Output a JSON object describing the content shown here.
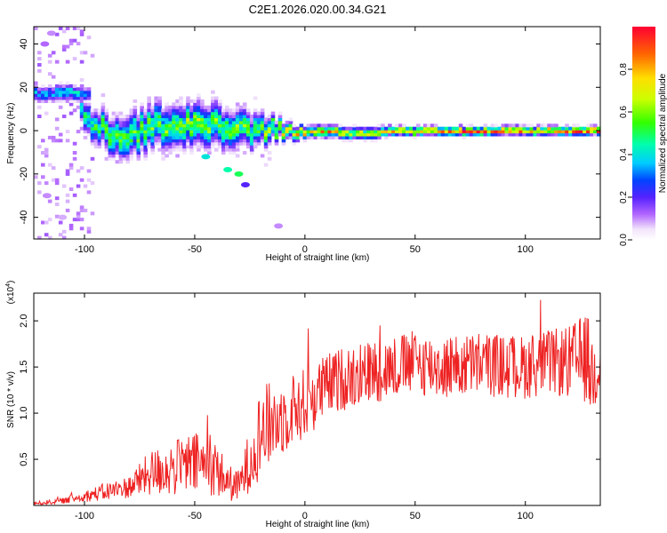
{
  "title": "C2E1.2026.020.00.34.G21",
  "chart_data": [
    {
      "type": "heatmap",
      "xlabel": "Height of straight line (km)",
      "ylabel": "Frequency (Hz)",
      "xlim": [
        -123,
        134
      ],
      "ylim": [
        -50,
        48
      ],
      "xticks": [
        -100,
        -50,
        0,
        50,
        100
      ],
      "yticks": [
        -40,
        -20,
        0,
        20,
        40
      ],
      "ridge": [
        {
          "x": -110,
          "y": 17,
          "amp": 0.35,
          "spread": 2.5
        },
        {
          "x": -103,
          "y": 15,
          "amp": 0.45,
          "spread": 2
        },
        {
          "x": -100,
          "y": 4,
          "amp": 0.5,
          "spread": 5
        },
        {
          "x": -90,
          "y": 0,
          "amp": 0.55,
          "spread": 6
        },
        {
          "x": -80,
          "y": -3,
          "amp": 0.6,
          "spread": 7
        },
        {
          "x": -70,
          "y": 2,
          "amp": 0.6,
          "spread": 7
        },
        {
          "x": -60,
          "y": 3,
          "amp": 0.6,
          "spread": 7
        },
        {
          "x": -50,
          "y": 2,
          "amp": 0.65,
          "spread": 7
        },
        {
          "x": -40,
          "y": 3,
          "amp": 0.6,
          "spread": 7
        },
        {
          "x": -30,
          "y": 1,
          "amp": 0.6,
          "spread": 6
        },
        {
          "x": -20,
          "y": 0,
          "amp": 0.6,
          "spread": 5
        },
        {
          "x": -10,
          "y": 1,
          "amp": 0.7,
          "spread": 3
        },
        {
          "x": 0,
          "y": 0,
          "amp": 0.8,
          "spread": 2
        },
        {
          "x": 10,
          "y": 0,
          "amp": 0.85,
          "spread": 2
        },
        {
          "x": 20,
          "y": -1,
          "amp": 0.75,
          "spread": 2
        },
        {
          "x": 30,
          "y": -1,
          "amp": 0.75,
          "spread": 2
        },
        {
          "x": 40,
          "y": 0,
          "amp": 0.9,
          "spread": 1.5
        },
        {
          "x": 60,
          "y": 0,
          "amp": 0.95,
          "spread": 1.5
        },
        {
          "x": 80,
          "y": 0,
          "amp": 0.95,
          "spread": 1.5
        },
        {
          "x": 100,
          "y": 0,
          "amp": 0.95,
          "spread": 1.5
        },
        {
          "x": 120,
          "y": 0,
          "amp": 0.95,
          "spread": 1.5
        },
        {
          "x": 134,
          "y": 0,
          "amp": 0.95,
          "spread": 1.5
        }
      ],
      "features": [
        {
          "x": -45,
          "y": -12,
          "amp": 0.4
        },
        {
          "x": -35,
          "y": -18,
          "amp": 0.45
        },
        {
          "x": -30,
          "y": -20,
          "amp": 0.5
        },
        {
          "x": -27,
          "y": -25,
          "amp": 0.2
        },
        {
          "x": -12,
          "y": -44,
          "amp": 0.1
        },
        {
          "x": -118,
          "y": 40,
          "amp": 0.12
        },
        {
          "x": -115,
          "y": 45,
          "amp": 0.1
        },
        {
          "x": -117,
          "y": -30,
          "amp": 0.1
        },
        {
          "x": -110,
          "y": -40,
          "amp": 0.08
        }
      ],
      "colorbar": {
        "label": "Normalized spectral amplitude",
        "ticks": [
          0.0,
          0.2,
          0.4,
          0.6,
          0.8
        ],
        "tick_labels": [
          "0.0",
          "0.2",
          "0.4",
          "0.6",
          "0.8"
        ],
        "range": [
          0,
          1
        ]
      }
    },
    {
      "type": "line",
      "xlabel": "Height of straight line (km)",
      "ylabel": "SNR (10 * v/v)",
      "scale_label": "(x10",
      "scale_exponent": "4",
      "xlim": [
        -123,
        134
      ],
      "ylim": [
        0,
        2.3
      ],
      "xticks": [
        -100,
        -50,
        0,
        50,
        100
      ],
      "yticks": [
        0.5,
        1.0,
        1.5,
        2.0
      ],
      "ytick_labels": [
        "0.5",
        "1.0",
        "1.5",
        "2.0"
      ],
      "color": "#ee2222",
      "envelope": {
        "x": [
          -123,
          -110,
          -100,
          -90,
          -80,
          -70,
          -60,
          -50,
          -40,
          -35,
          -30,
          -25,
          -20,
          -15,
          -10,
          -5,
          0,
          10,
          20,
          30,
          40,
          50,
          60,
          70,
          80,
          90,
          100,
          110,
          120,
          128,
          130,
          134
        ],
        "mean": [
          0.02,
          0.05,
          0.1,
          0.15,
          0.2,
          0.35,
          0.4,
          0.45,
          0.4,
          0.25,
          0.2,
          0.5,
          0.8,
          0.9,
          0.95,
          1.05,
          1.1,
          1.3,
          1.4,
          1.45,
          1.5,
          1.55,
          1.5,
          1.5,
          1.55,
          1.5,
          1.5,
          1.55,
          1.55,
          1.6,
          1.4,
          1.55
        ],
        "amp": [
          0.02,
          0.03,
          0.06,
          0.1,
          0.12,
          0.25,
          0.3,
          0.35,
          0.3,
          0.2,
          0.18,
          0.35,
          0.5,
          0.45,
          0.4,
          0.4,
          0.4,
          0.35,
          0.35,
          0.35,
          0.35,
          0.35,
          0.35,
          0.35,
          0.35,
          0.35,
          0.35,
          0.35,
          0.4,
          0.5,
          0.5,
          0.3
        ]
      }
    }
  ]
}
